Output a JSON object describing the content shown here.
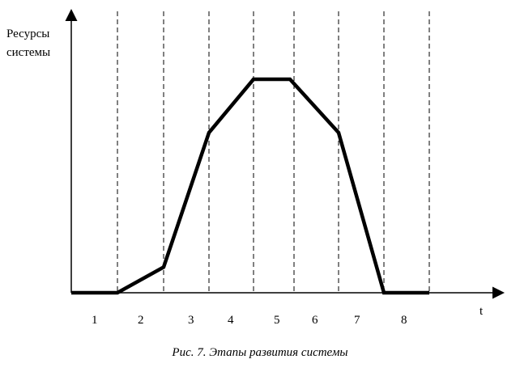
{
  "y_axis_label": [
    "Ресурсы",
    "системы"
  ],
  "x_axis_label": "t",
  "stages": [
    "1",
    "2",
    "3",
    "4",
    "5",
    "6",
    "7",
    "8"
  ],
  "caption": "Рис. 7. Этапы развития системы",
  "chart_data": {
    "type": "line",
    "title": "",
    "xlabel": "t",
    "ylabel": "Ресурсы системы",
    "x_boundaries": [
      0,
      1,
      2,
      3,
      4,
      5,
      6,
      7,
      8
    ],
    "x": [
      0,
      1,
      2,
      3,
      4,
      4.9,
      6,
      7,
      8
    ],
    "y": [
      0,
      0,
      0.12,
      0.75,
      1.0,
      1.0,
      0.75,
      0,
      0
    ],
    "xlim": [
      0,
      8
    ],
    "ylim": [
      0,
      1.25
    ],
    "grid": false
  }
}
